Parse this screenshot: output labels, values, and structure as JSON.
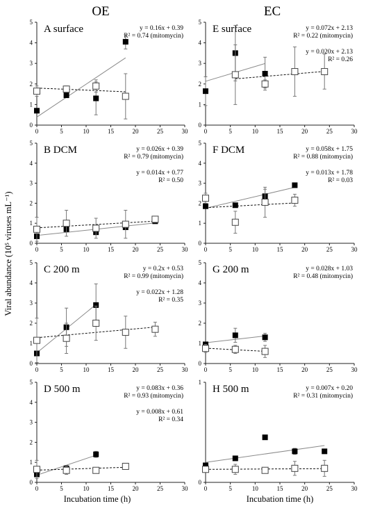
{
  "figure": {
    "columns": [
      "OE",
      "EC"
    ],
    "ylabel": "Viral abundance (10⁵ viruses mL⁻¹)",
    "xlabel": "Incubation time (h)"
  },
  "chart_data": [
    {
      "id": "A",
      "type": "scatter",
      "column": "OE",
      "label": "A   surface",
      "xlim": [
        0,
        30
      ],
      "ylim": [
        0,
        5
      ],
      "xticks": [
        "0",
        "5",
        "10",
        "15",
        "20",
        "25",
        "30"
      ],
      "yticks": [
        "0",
        "1",
        "2",
        "3",
        "4",
        "5"
      ],
      "equations": [
        {
          "text": "y = 0.16x + 0.39",
          "series": "mitomycin"
        },
        {
          "text": "R² = 0.74 (mitomycin)",
          "series": "mitomycin"
        }
      ],
      "series": [
        {
          "marker": "filled",
          "line": "solid",
          "x": [
            0,
            6,
            12,
            18
          ],
          "y": [
            0.7,
            1.45,
            1.3,
            4.05
          ],
          "err": [
            0,
            0,
            0.8,
            0.35
          ],
          "fit": {
            "slope": 0.16,
            "intercept": 0.39
          }
        },
        {
          "marker": "open",
          "line": "dashed",
          "x": [
            0,
            6,
            12,
            18
          ],
          "y": [
            1.65,
            1.75,
            1.9,
            1.4
          ],
          "err": [
            0.25,
            0.15,
            0.3,
            1.1
          ],
          "fit": {
            "slope": -0.01,
            "intercept": 1.8
          }
        }
      ]
    },
    {
      "id": "B",
      "type": "scatter",
      "column": "OE",
      "label": "B   DCM",
      "xlim": [
        0,
        30
      ],
      "ylim": [
        0,
        5
      ],
      "xticks": [
        "0",
        "5",
        "10",
        "15",
        "20",
        "25",
        "30"
      ],
      "yticks": [
        "0",
        "1",
        "2",
        "3",
        "4",
        "5"
      ],
      "equations": [
        {
          "text": "y = 0.026x + 0.39",
          "series": "mitomycin"
        },
        {
          "text": "R² = 0.79 (mitomycin)",
          "series": "mitomycin"
        },
        {
          "text": "y = 0.014x + 0.77",
          "series": "control"
        },
        {
          "text": "R² = 0.50",
          "series": "control"
        }
      ],
      "series": [
        {
          "marker": "filled",
          "line": "solid",
          "x": [
            0,
            6,
            12,
            18,
            24
          ],
          "y": [
            0.35,
            0.7,
            0.55,
            0.8,
            1.1
          ],
          "err": [
            0,
            0,
            0,
            0,
            0
          ],
          "fit": {
            "slope": 0.026,
            "intercept": 0.39
          }
        },
        {
          "marker": "open",
          "line": "dashed",
          "x": [
            0,
            6,
            12,
            18,
            24
          ],
          "y": [
            0.7,
            1.0,
            0.75,
            0.95,
            1.2
          ],
          "err": [
            0.6,
            0.65,
            0.5,
            0.7,
            0.15
          ],
          "fit": {
            "slope": 0.014,
            "intercept": 0.77
          }
        }
      ]
    },
    {
      "id": "C",
      "type": "scatter",
      "column": "OE",
      "label": "C   200 m",
      "xlim": [
        0,
        30
      ],
      "ylim": [
        0,
        5
      ],
      "xticks": [
        "0",
        "5",
        "10",
        "15",
        "20",
        "25",
        "30"
      ],
      "yticks": [
        "0",
        "1",
        "2",
        "3",
        "4",
        "5"
      ],
      "equations": [
        {
          "text": "y = 0.2x + 0.53",
          "series": "mitomycin"
        },
        {
          "text": "R² = 0.99 (mitomycin)",
          "series": "mitomycin"
        },
        {
          "text": "y = 0.022x + 1.28",
          "series": "control"
        },
        {
          "text": "R² = 0.35",
          "series": "control"
        }
      ],
      "series": [
        {
          "marker": "filled",
          "line": "solid",
          "x": [
            0,
            6,
            12
          ],
          "y": [
            0.5,
            1.8,
            2.9
          ],
          "err": [
            0,
            0.95,
            1.05
          ],
          "fit": {
            "slope": 0.2,
            "intercept": 0.53
          }
        },
        {
          "marker": "open",
          "line": "dashed",
          "x": [
            0,
            6,
            12,
            18,
            24
          ],
          "y": [
            1.15,
            1.25,
            2.0,
            1.55,
            1.7
          ],
          "err": [
            1.1,
            0.75,
            0.85,
            0.8,
            0.35
          ],
          "fit": {
            "slope": 0.022,
            "intercept": 1.28
          }
        }
      ]
    },
    {
      "id": "D",
      "type": "scatter",
      "column": "OE",
      "label": "D   500 m",
      "xlim": [
        0,
        30
      ],
      "ylim": [
        0,
        5
      ],
      "xticks": [
        "0",
        "5",
        "10",
        "15",
        "20",
        "25",
        "30"
      ],
      "yticks": [
        "0",
        "1",
        "2",
        "3",
        "4",
        "5"
      ],
      "equations": [
        {
          "text": "y = 0.083x + 0.36",
          "series": "mitomycin"
        },
        {
          "text": "R² = 0.93 (mitomycin)",
          "series": "mitomycin"
        },
        {
          "text": "y = 0.008x + 0.61",
          "series": "control"
        },
        {
          "text": "R² = 0.34",
          "series": "control"
        }
      ],
      "series": [
        {
          "marker": "filled",
          "line": "solid",
          "x": [
            0,
            6,
            12
          ],
          "y": [
            0.4,
            0.7,
            1.4
          ],
          "err": [
            0,
            0.15,
            0.15
          ],
          "fit": {
            "slope": 0.083,
            "intercept": 0.36
          }
        },
        {
          "marker": "open",
          "line": "dashed",
          "x": [
            0,
            6,
            12,
            18
          ],
          "y": [
            0.65,
            0.6,
            0.6,
            0.8
          ],
          "err": [
            0.45,
            0.2,
            0,
            0
          ],
          "fit": {
            "slope": 0.008,
            "intercept": 0.61
          }
        }
      ]
    },
    {
      "id": "E",
      "type": "scatter",
      "column": "EC",
      "label": "E   surface",
      "xlim": [
        0,
        30
      ],
      "ylim": [
        0,
        5
      ],
      "xticks": [
        "0",
        "5",
        "10",
        "15",
        "20",
        "25",
        "30"
      ],
      "yticks": [
        "0",
        "1",
        "2",
        "3",
        "4",
        "5"
      ],
      "equations": [
        {
          "text": "y = 0.072x + 2.13",
          "series": "mitomycin"
        },
        {
          "text": "R² = 0.22 (mitomycin)",
          "series": "mitomycin"
        },
        {
          "text": "y = 0.020x + 2.13",
          "series": "control"
        },
        {
          "text": "R² = 0.26",
          "series": "control"
        }
      ],
      "series": [
        {
          "marker": "filled",
          "line": "solid",
          "x": [
            0,
            6,
            12
          ],
          "y": [
            1.65,
            3.5,
            2.5
          ],
          "err": [
            0.7,
            1.35,
            0.8
          ],
          "fit": {
            "slope": 0.072,
            "intercept": 2.13
          }
        },
        {
          "marker": "open",
          "line": "dashed",
          "x": [
            6,
            12,
            18,
            24
          ],
          "y": [
            2.45,
            2.0,
            2.6,
            2.6
          ],
          "err": [
            1.45,
            0.2,
            1.2,
            0.85
          ],
          "fit": {
            "slope": 0.02,
            "intercept": 2.13
          }
        }
      ]
    },
    {
      "id": "F",
      "type": "scatter",
      "column": "EC",
      "label": "F   DCM",
      "xlim": [
        0,
        30
      ],
      "ylim": [
        0,
        5
      ],
      "xticks": [
        "0",
        "5",
        "10",
        "15",
        "20",
        "25",
        "30"
      ],
      "yticks": [
        "0",
        "1",
        "2",
        "3",
        "4",
        "5"
      ],
      "equations": [
        {
          "text": "y = 0.058x + 1.75",
          "series": "mitomycin"
        },
        {
          "text": "R² = 0.88 (mitomycin)",
          "series": "mitomycin"
        },
        {
          "text": "y = 0.013x + 1.78",
          "series": "control"
        },
        {
          "text": "R² = 0.03",
          "series": "control"
        }
      ],
      "series": [
        {
          "marker": "filled",
          "line": "solid",
          "x": [
            0,
            6,
            12,
            18
          ],
          "y": [
            1.85,
            1.9,
            2.35,
            2.9
          ],
          "err": [
            0,
            0,
            0.35,
            0
          ],
          "fit": {
            "slope": 0.058,
            "intercept": 1.75
          }
        },
        {
          "marker": "open",
          "line": "dashed",
          "x": [
            0,
            6,
            12,
            18
          ],
          "y": [
            2.25,
            1.05,
            2.05,
            2.15
          ],
          "err": [
            0.25,
            0.55,
            0.75,
            0.3
          ],
          "fit": {
            "slope": 0.013,
            "intercept": 1.78
          }
        }
      ]
    },
    {
      "id": "G",
      "type": "scatter",
      "column": "EC",
      "label": "G   200 m",
      "xlim": [
        0,
        30
      ],
      "ylim": [
        0,
        5
      ],
      "xticks": [
        "0",
        "5",
        "10",
        "15",
        "20",
        "25",
        "30"
      ],
      "yticks": [
        "0",
        "1",
        "2",
        "3",
        "4",
        "5"
      ],
      "equations": [
        {
          "text": "y = 0.028x + 1.03",
          "series": "mitomycin"
        },
        {
          "text": "R² = 0.48 (mitomycin)",
          "series": "mitomycin"
        }
      ],
      "series": [
        {
          "marker": "filled",
          "line": "solid",
          "x": [
            0,
            6,
            12
          ],
          "y": [
            0.95,
            1.4,
            1.3
          ],
          "err": [
            0,
            0.35,
            0.2
          ],
          "fit": {
            "slope": 0.028,
            "intercept": 1.03
          }
        },
        {
          "marker": "open",
          "line": "dashed",
          "x": [
            0,
            6,
            12
          ],
          "y": [
            0.75,
            0.7,
            0.6
          ],
          "err": [
            0.2,
            0.2,
            0.3
          ],
          "fit": {
            "slope": -0.013,
            "intercept": 0.76
          }
        }
      ]
    },
    {
      "id": "H",
      "type": "scatter",
      "column": "EC",
      "label": "H   500 m",
      "xlim": [
        0,
        30
      ],
      "ylim": [
        0,
        1
      ],
      "xticks": [
        "0",
        "5",
        "10",
        "15",
        "20",
        "25",
        "30"
      ],
      "yticks": [
        "0",
        "1"
      ],
      "equations": [
        {
          "text": "y = 0.007x + 0.20",
          "series": "mitomycin"
        },
        {
          "text": "R² = 0.31 (mitomycin)",
          "series": "mitomycin"
        }
      ],
      "series": [
        {
          "marker": "filled",
          "line": "solid",
          "x": [
            0,
            6,
            12,
            18,
            24
          ],
          "y": [
            0.17,
            0.24,
            0.45,
            0.31,
            0.31
          ],
          "err": [
            0,
            0,
            0.01,
            0.03,
            0.02
          ],
          "fit": {
            "slope": 0.007,
            "intercept": 0.2
          }
        },
        {
          "marker": "open",
          "line": "dashed",
          "x": [
            0,
            6,
            12,
            18,
            24
          ],
          "y": [
            0.13,
            0.13,
            0.12,
            0.14,
            0.14
          ],
          "err": [
            0.02,
            0.05,
            0.01,
            0.07,
            0.08
          ],
          "fit": {
            "slope": 0.0003,
            "intercept": 0.13
          }
        }
      ]
    }
  ]
}
